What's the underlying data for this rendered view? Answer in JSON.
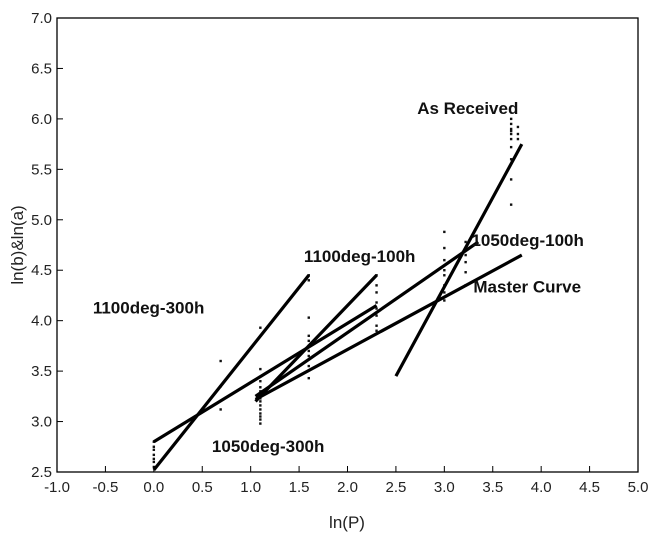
{
  "chart_data": {
    "type": "scatter",
    "xlabel": "ln(P)",
    "ylabel": "ln(b)&ln(a)",
    "xlim": [
      -1.0,
      5.0
    ],
    "ylim": [
      2.5,
      7.0
    ],
    "xticks": [
      "-1.0",
      "-0.5",
      "0.0",
      "0.5",
      "1.0",
      "1.5",
      "2.0",
      "2.5",
      "3.0",
      "3.5",
      "4.0",
      "4.5",
      "5.0"
    ],
    "yticks": [
      "2.5",
      "3.0",
      "3.5",
      "4.0",
      "4.5",
      "5.0",
      "5.5",
      "6.0",
      "6.5",
      "7.0"
    ],
    "grid": false,
    "lines": [
      {
        "x": [
          0.0,
          1.6
        ],
        "y": [
          2.52,
          4.45
        ]
      },
      {
        "x": [
          1.05,
          2.3
        ],
        "y": [
          3.2,
          4.45
        ]
      },
      {
        "x": [
          0.0,
          2.3
        ],
        "y": [
          2.8,
          4.15
        ]
      },
      {
        "x": [
          1.05,
          3.8
        ],
        "y": [
          3.22,
          4.65
        ]
      },
      {
        "x": [
          1.05,
          3.35
        ],
        "y": [
          3.25,
          4.78
        ]
      },
      {
        "x": [
          2.5,
          3.8
        ],
        "y": [
          3.45,
          5.75
        ]
      }
    ],
    "points": {
      "x": [
        0.0,
        0.0,
        0.0,
        0.0,
        0.0,
        0.0,
        0.0,
        0.69,
        0.69,
        0.69,
        1.1,
        1.1,
        1.1,
        1.1,
        1.1,
        1.1,
        1.1,
        1.1,
        1.1,
        1.1,
        1.1,
        1.1,
        1.1,
        1.1,
        1.6,
        1.6,
        1.6,
        1.6,
        1.6,
        1.6,
        1.6,
        1.6,
        1.6,
        1.6,
        2.3,
        2.3,
        2.3,
        2.3,
        2.3,
        2.3,
        2.3,
        2.3,
        3.0,
        3.0,
        3.0,
        3.0,
        3.0,
        3.0,
        3.0,
        3.0,
        3.22,
        3.22,
        3.22,
        3.22,
        3.22,
        3.22,
        3.69,
        3.69,
        3.69,
        3.69,
        3.69,
        3.69,
        3.69,
        3.69,
        3.69,
        3.69,
        3.76,
        3.76,
        3.76
      ],
      "y": [
        2.55,
        2.6,
        2.63,
        2.67,
        2.72,
        2.75,
        2.8,
        3.12,
        3.35,
        3.6,
        2.98,
        3.02,
        3.05,
        3.08,
        3.12,
        3.16,
        3.2,
        3.23,
        3.26,
        3.3,
        3.34,
        3.4,
        3.52,
        3.93,
        3.43,
        3.55,
        3.65,
        3.7,
        3.75,
        3.8,
        3.85,
        4.03,
        4.4,
        4.45,
        3.9,
        3.95,
        4.05,
        4.12,
        4.18,
        4.28,
        4.35,
        4.45,
        4.2,
        4.28,
        4.35,
        4.45,
        4.5,
        4.6,
        4.72,
        4.88,
        4.35,
        4.48,
        4.58,
        4.65,
        4.7,
        4.78,
        5.15,
        5.4,
        5.6,
        5.72,
        5.8,
        5.85,
        5.88,
        5.9,
        5.95,
        6.0,
        5.8,
        5.85,
        5.92
      ]
    },
    "annotations": [
      {
        "text": "As Received",
        "x": 2.72,
        "y": 6.05
      },
      {
        "text": "1100deg-100h",
        "x": 1.55,
        "y": 4.58
      },
      {
        "text": "1050deg-100h",
        "x": 3.28,
        "y": 4.74
      },
      {
        "text": "Master Curve",
        "x": 3.3,
        "y": 4.28
      },
      {
        "text": "1100deg-300h",
        "x": -0.63,
        "y": 4.07
      },
      {
        "text": "1050deg-300h",
        "x": 0.6,
        "y": 2.7
      }
    ]
  }
}
